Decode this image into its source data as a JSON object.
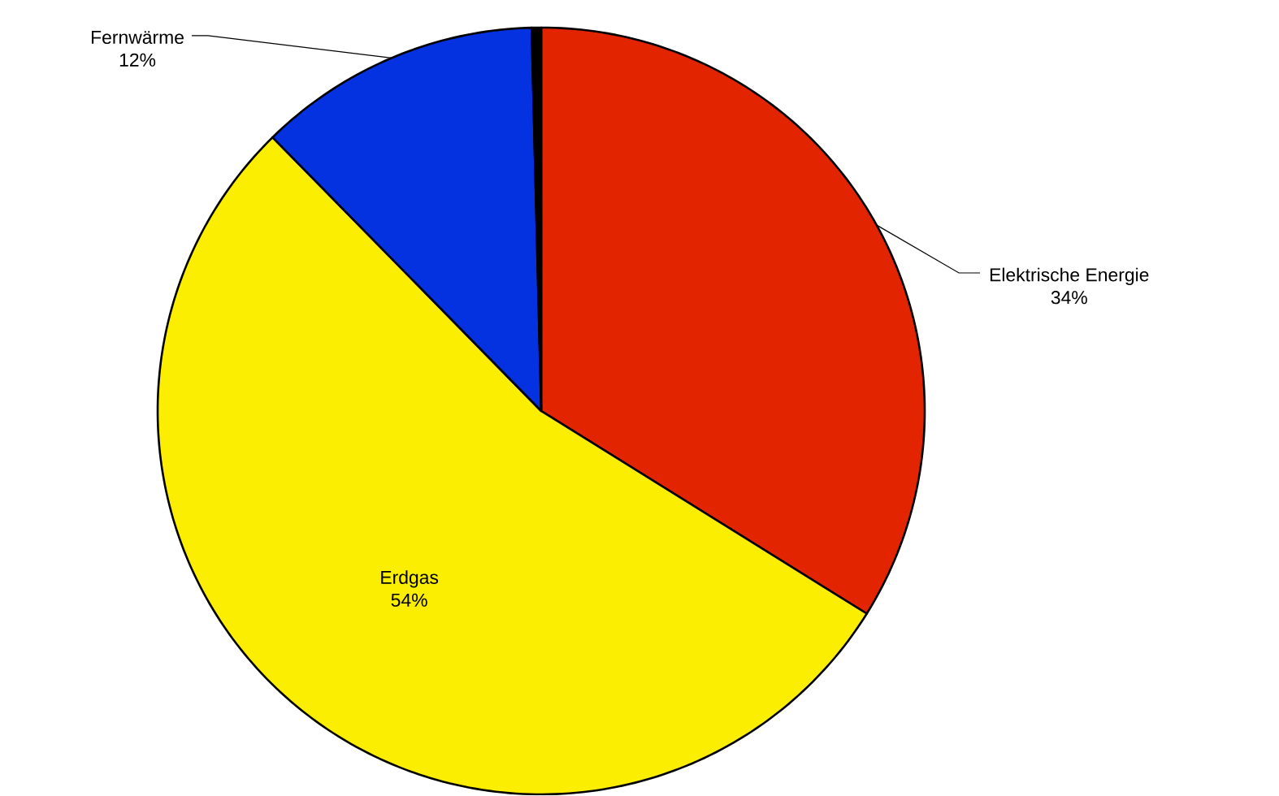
{
  "chart_data": {
    "type": "pie",
    "categories": [
      "Elektrische Energie",
      "Erdgas",
      "Fernwärme",
      null
    ],
    "values": [
      34,
      54,
      12,
      0.4
    ],
    "value_labels": [
      "34%",
      "54%",
      "12%",
      null
    ],
    "colors": [
      "#e32400",
      "#fbee00",
      "#0432e0",
      "#000000"
    ]
  }
}
